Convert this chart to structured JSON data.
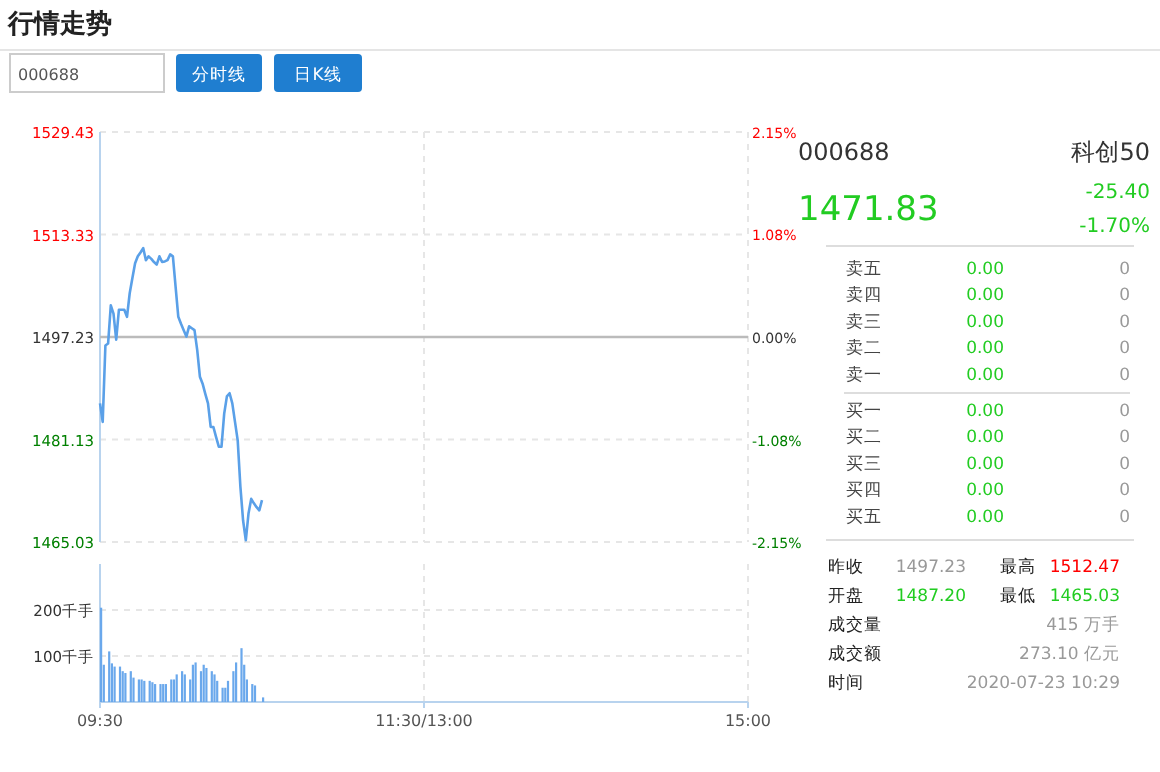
{
  "chart_data": [
    {
      "type": "other",
      "title": "行情走势",
      "annotations": [
        "000688",
        "分时线",
        "日K线"
      ]
    },
    {
      "type": "line",
      "categories": [
        null,
        null,
        null,
        null,
        null,
        null,
        null,
        null,
        null,
        null,
        null,
        null,
        null,
        null,
        null,
        null,
        null,
        null,
        null,
        null,
        null,
        null,
        null,
        null,
        null,
        null,
        null,
        null,
        null,
        null,
        null,
        null,
        null,
        null,
        null,
        null,
        null,
        null,
        null,
        null,
        null,
        null,
        null,
        null,
        null,
        null,
        null,
        null,
        null,
        null,
        null,
        null,
        null,
        null,
        null,
        null,
        null,
        null,
        null,
        null,
        null,
        null,
        null,
        null,
        null,
        null,
        null,
        null,
        null,
        null,
        null,
        null,
        null,
        null,
        null,
        null,
        null,
        null,
        null,
        null,
        null,
        null,
        null,
        null,
        null,
        null,
        null,
        null,
        null,
        null,
        null,
        null,
        null,
        null,
        null,
        null,
        null,
        null,
        null,
        null,
        null,
        null,
        null,
        null,
        null,
        null,
        null,
        null,
        null,
        null,
        null,
        null,
        null,
        null,
        null,
        null,
        null,
        null,
        null,
        null,
        null,
        null,
        null,
        null,
        null,
        null,
        null,
        null,
        null,
        null,
        null,
        null,
        null,
        null,
        null,
        null,
        null,
        null,
        null,
        null,
        null,
        null,
        null,
        null,
        null,
        null,
        null,
        null,
        null,
        null,
        null,
        null,
        null,
        null,
        null,
        null,
        null,
        null,
        null,
        null,
        null,
        null,
        null,
        null,
        null,
        null,
        null,
        null,
        null,
        null,
        null,
        null,
        null,
        null,
        null,
        null,
        null,
        null,
        null,
        null,
        null,
        null,
        null,
        null,
        null,
        null,
        null,
        null,
        null,
        null,
        null,
        null,
        null,
        null,
        null,
        null,
        null,
        null,
        null,
        null,
        null,
        null,
        null,
        null,
        null,
        null,
        null,
        null,
        null,
        null,
        null,
        null,
        null,
        null,
        null,
        null,
        null,
        null,
        null,
        null,
        null,
        null,
        null,
        null,
        null,
        null,
        null,
        null,
        null,
        null,
        null,
        null,
        null,
        null,
        null,
        null,
        null,
        null,
        null,
        null,
        null
      ],
      "series": [
        {
          "color": "#5aa0e8",
          "values": [
            1486.8,
            1483.9,
            1495.9,
            1496.2,
            1502.2,
            1500.9,
            1496.8,
            1501.5,
            1501.5,
            1501.5,
            1500.4,
            1504.1,
            1506.5,
            1508.8,
            1509.9,
            1510.5,
            1511.2,
            1509.3,
            1509.9,
            1509.5,
            1509.0,
            1508.6,
            1509.9,
            1509.0,
            1509.1,
            1509.3,
            1510.2,
            1509.9,
            1505.1,
            1500.4,
            1499.3,
            1498.3,
            1497.3,
            1498.9,
            1498.6,
            1498.3,
            1495.2,
            1491.0,
            1489.9,
            1488.3,
            1486.8,
            1483.1,
            1483.1,
            1481.5,
            1480.0,
            1480.0,
            1485.2,
            1487.9,
            1488.4,
            1486.8,
            1483.9,
            1481.0,
            1473.7,
            1468.4,
            1465.3,
            1469.5,
            1471.8,
            1471.1,
            1470.5,
            1470.0,
            1471.6,
            null,
            null,
            null,
            null,
            null,
            null,
            null,
            null,
            null,
            null,
            null,
            null,
            null,
            null,
            null,
            null,
            null,
            null,
            null,
            null,
            null,
            null,
            null,
            null,
            null,
            null,
            null,
            null,
            null,
            null,
            null,
            null,
            null,
            null,
            null,
            null,
            null,
            null,
            null,
            null,
            null,
            null,
            null,
            null,
            null,
            null,
            null,
            null,
            null,
            null,
            null,
            null,
            null,
            null,
            null,
            null,
            null,
            null,
            null,
            null,
            null,
            null,
            null,
            null,
            null,
            null,
            null,
            null,
            null,
            null,
            null,
            null,
            null,
            null,
            null,
            null,
            null,
            null,
            null,
            null,
            null,
            null,
            null,
            null,
            null,
            null,
            null,
            null,
            null,
            null,
            null,
            null,
            null,
            null,
            null,
            null,
            null,
            null,
            null,
            null,
            null,
            null,
            null,
            null,
            null,
            null,
            null,
            null,
            null,
            null,
            null,
            null,
            null,
            null,
            null,
            null,
            null,
            null,
            null,
            null,
            null,
            null,
            null,
            null,
            null,
            null,
            null,
            null,
            null,
            null,
            null,
            null,
            null,
            null,
            null,
            null,
            null,
            null,
            null,
            null,
            null,
            null,
            null,
            null,
            null,
            null,
            null,
            null,
            null,
            null,
            null,
            null,
            null,
            null,
            null,
            null,
            null,
            null,
            null,
            null,
            null,
            null,
            null,
            null,
            null,
            null,
            null,
            null,
            null,
            null,
            null,
            null,
            null,
            null,
            null,
            null,
            null,
            null,
            null,
            null
          ]
        }
      ],
      "ylim": [
        1465.03,
        1529.43
      ],
      "yticks": [
        1465.03,
        1481.13,
        1497.23,
        1513.33,
        1529.43
      ],
      "y2lim": [
        -2.15,
        2.15
      ],
      "y2ticks": [
        {
          "value": -2.15,
          "label": "-2.15%"
        },
        {
          "value": -1.08,
          "label": "-1.08%"
        },
        {
          "value": 0,
          "label": "0.00%"
        },
        {
          "value": 1.08,
          "label": "1.08%"
        },
        {
          "value": 2.15,
          "label": "2.15%"
        }
      ],
      "ref_lines": [
        {
          "axis": "y",
          "value": 1497.23,
          "color": "#bbbbbb"
        }
      ],
      "grid": true,
      "tick_labels": "y"
    },
    {
      "type": "bar",
      "categories": [
        "09:30",
        null,
        null,
        null,
        null,
        null,
        null,
        null,
        null,
        null,
        null,
        null,
        null,
        null,
        null,
        null,
        null,
        null,
        null,
        null,
        null,
        null,
        null,
        null,
        null,
        null,
        null,
        null,
        null,
        null,
        null,
        null,
        null,
        null,
        null,
        null,
        null,
        null,
        null,
        null,
        null,
        null,
        null,
        null,
        null,
        null,
        null,
        null,
        null,
        null,
        null,
        null,
        null,
        null,
        null,
        null,
        null,
        null,
        null,
        null,
        null,
        null,
        null,
        null,
        null,
        null,
        null,
        null,
        null,
        null,
        null,
        null,
        null,
        null,
        null,
        null,
        null,
        null,
        null,
        null,
        null,
        null,
        null,
        null,
        null,
        null,
        null,
        null,
        null,
        null,
        null,
        null,
        null,
        null,
        null,
        null,
        null,
        null,
        null,
        null,
        null,
        null,
        null,
        null,
        null,
        null,
        null,
        null,
        null,
        null,
        null,
        null,
        null,
        null,
        null,
        null,
        null,
        null,
        null,
        null,
        "11:30/13:00",
        null,
        null,
        null,
        null,
        null,
        null,
        null,
        null,
        null,
        null,
        null,
        null,
        null,
        null,
        null,
        null,
        null,
        null,
        null,
        null,
        null,
        null,
        null,
        null,
        null,
        null,
        null,
        null,
        null,
        null,
        null,
        null,
        null,
        null,
        null,
        null,
        null,
        null,
        null,
        null,
        null,
        null,
        null,
        null,
        null,
        null,
        null,
        null,
        null,
        null,
        null,
        null,
        null,
        null,
        null,
        null,
        null,
        null,
        null,
        null,
        null,
        null,
        null,
        null,
        null,
        null,
        null,
        null,
        null,
        null,
        null,
        null,
        null,
        null,
        null,
        null,
        null,
        null,
        null,
        null,
        null,
        null,
        null,
        null,
        null,
        null,
        null,
        null,
        null,
        null,
        null,
        null,
        null,
        null,
        null,
        null,
        null,
        null,
        null,
        null,
        null,
        null,
        null,
        null,
        null,
        null,
        null,
        null,
        null,
        null,
        null,
        null,
        null,
        null,
        null,
        null,
        null,
        null,
        null,
        "15:00"
      ],
      "series": [
        {
          "color": "#6aa8ec",
          "values": [
            205,
            81,
            null,
            110,
            84,
            77,
            null,
            77,
            67,
            63,
            null,
            67,
            53,
            null,
            49,
            49,
            46,
            null,
            46,
            43,
            39,
            null,
            39,
            39,
            39,
            null,
            49,
            49,
            60,
            null,
            67,
            60,
            null,
            49,
            81,
            86,
            null,
            67,
            81,
            74,
            null,
            67,
            60,
            46,
            null,
            31,
            31,
            46,
            null,
            67,
            86,
            null,
            117,
            81,
            49,
            null,
            39,
            36,
            null,
            null,
            10,
            null,
            null,
            null,
            null,
            null,
            null,
            null,
            null,
            null,
            null,
            null,
            null,
            null,
            null,
            null,
            null,
            null,
            null,
            null,
            null,
            null,
            null,
            null,
            null,
            null,
            null,
            null,
            null,
            null,
            null,
            null,
            null,
            null,
            null,
            null,
            null,
            null,
            null,
            null,
            null,
            null,
            null,
            null,
            null,
            null,
            null,
            null,
            null,
            null,
            null,
            null,
            null,
            null,
            null,
            null,
            null,
            null,
            null,
            null,
            null,
            null,
            null,
            null,
            null,
            null,
            null,
            null,
            null,
            null,
            null,
            null,
            null,
            null,
            null,
            null,
            null,
            null,
            null,
            null,
            null,
            null,
            null,
            null,
            null,
            null,
            null,
            null,
            null,
            null,
            null,
            null,
            null,
            null,
            null,
            null,
            null,
            null,
            null,
            null,
            null,
            null,
            null,
            null,
            null,
            null,
            null,
            null,
            null,
            null,
            null,
            null,
            null,
            null,
            null,
            null,
            null,
            null,
            null,
            null,
            null,
            null,
            null,
            null,
            null,
            null,
            null,
            null,
            null,
            null,
            null,
            null,
            null,
            null,
            null,
            null,
            null,
            null,
            null,
            null,
            null,
            null,
            null,
            null,
            null,
            null,
            null,
            null,
            null,
            null,
            null,
            null,
            null,
            null,
            null,
            null,
            null,
            null,
            null,
            null,
            null,
            null,
            null,
            null,
            null,
            null,
            null,
            null,
            null,
            null,
            null,
            null,
            null,
            null,
            null,
            null,
            null,
            null,
            null,
            null,
            null
          ]
        }
      ],
      "ylim": [
        0,
        300
      ],
      "yticks": [
        {
          "value": 100,
          "label": "100千手"
        },
        {
          "value": 200,
          "label": "200千手"
        }
      ],
      "grid": true
    },
    {
      "type": "other",
      "title": "000688",
      "subtitle": "科创50",
      "annotations": [
        "1471.83",
        "-25.40",
        "-1.70%",
        "卖五",
        "0.00",
        "0",
        "卖四",
        "0.00",
        "0",
        "卖三",
        "0.00",
        "0",
        "卖二",
        "0.00",
        "0",
        "卖一",
        "0.00",
        "0",
        "买一",
        "0.00",
        "0",
        "买二",
        "0.00",
        "0",
        "买三",
        "0.00",
        "0",
        "买四",
        "0.00",
        "0",
        "买五",
        "0.00",
        "0",
        "昨收",
        "1497.23",
        "最高",
        "1512.47",
        "开盘",
        "1487.20",
        "最低",
        "1465.03",
        "成交量",
        "415 万手",
        "成交额",
        "273.10 亿元",
        "时间",
        "2020-07-23 10:29"
      ]
    }
  ]
}
